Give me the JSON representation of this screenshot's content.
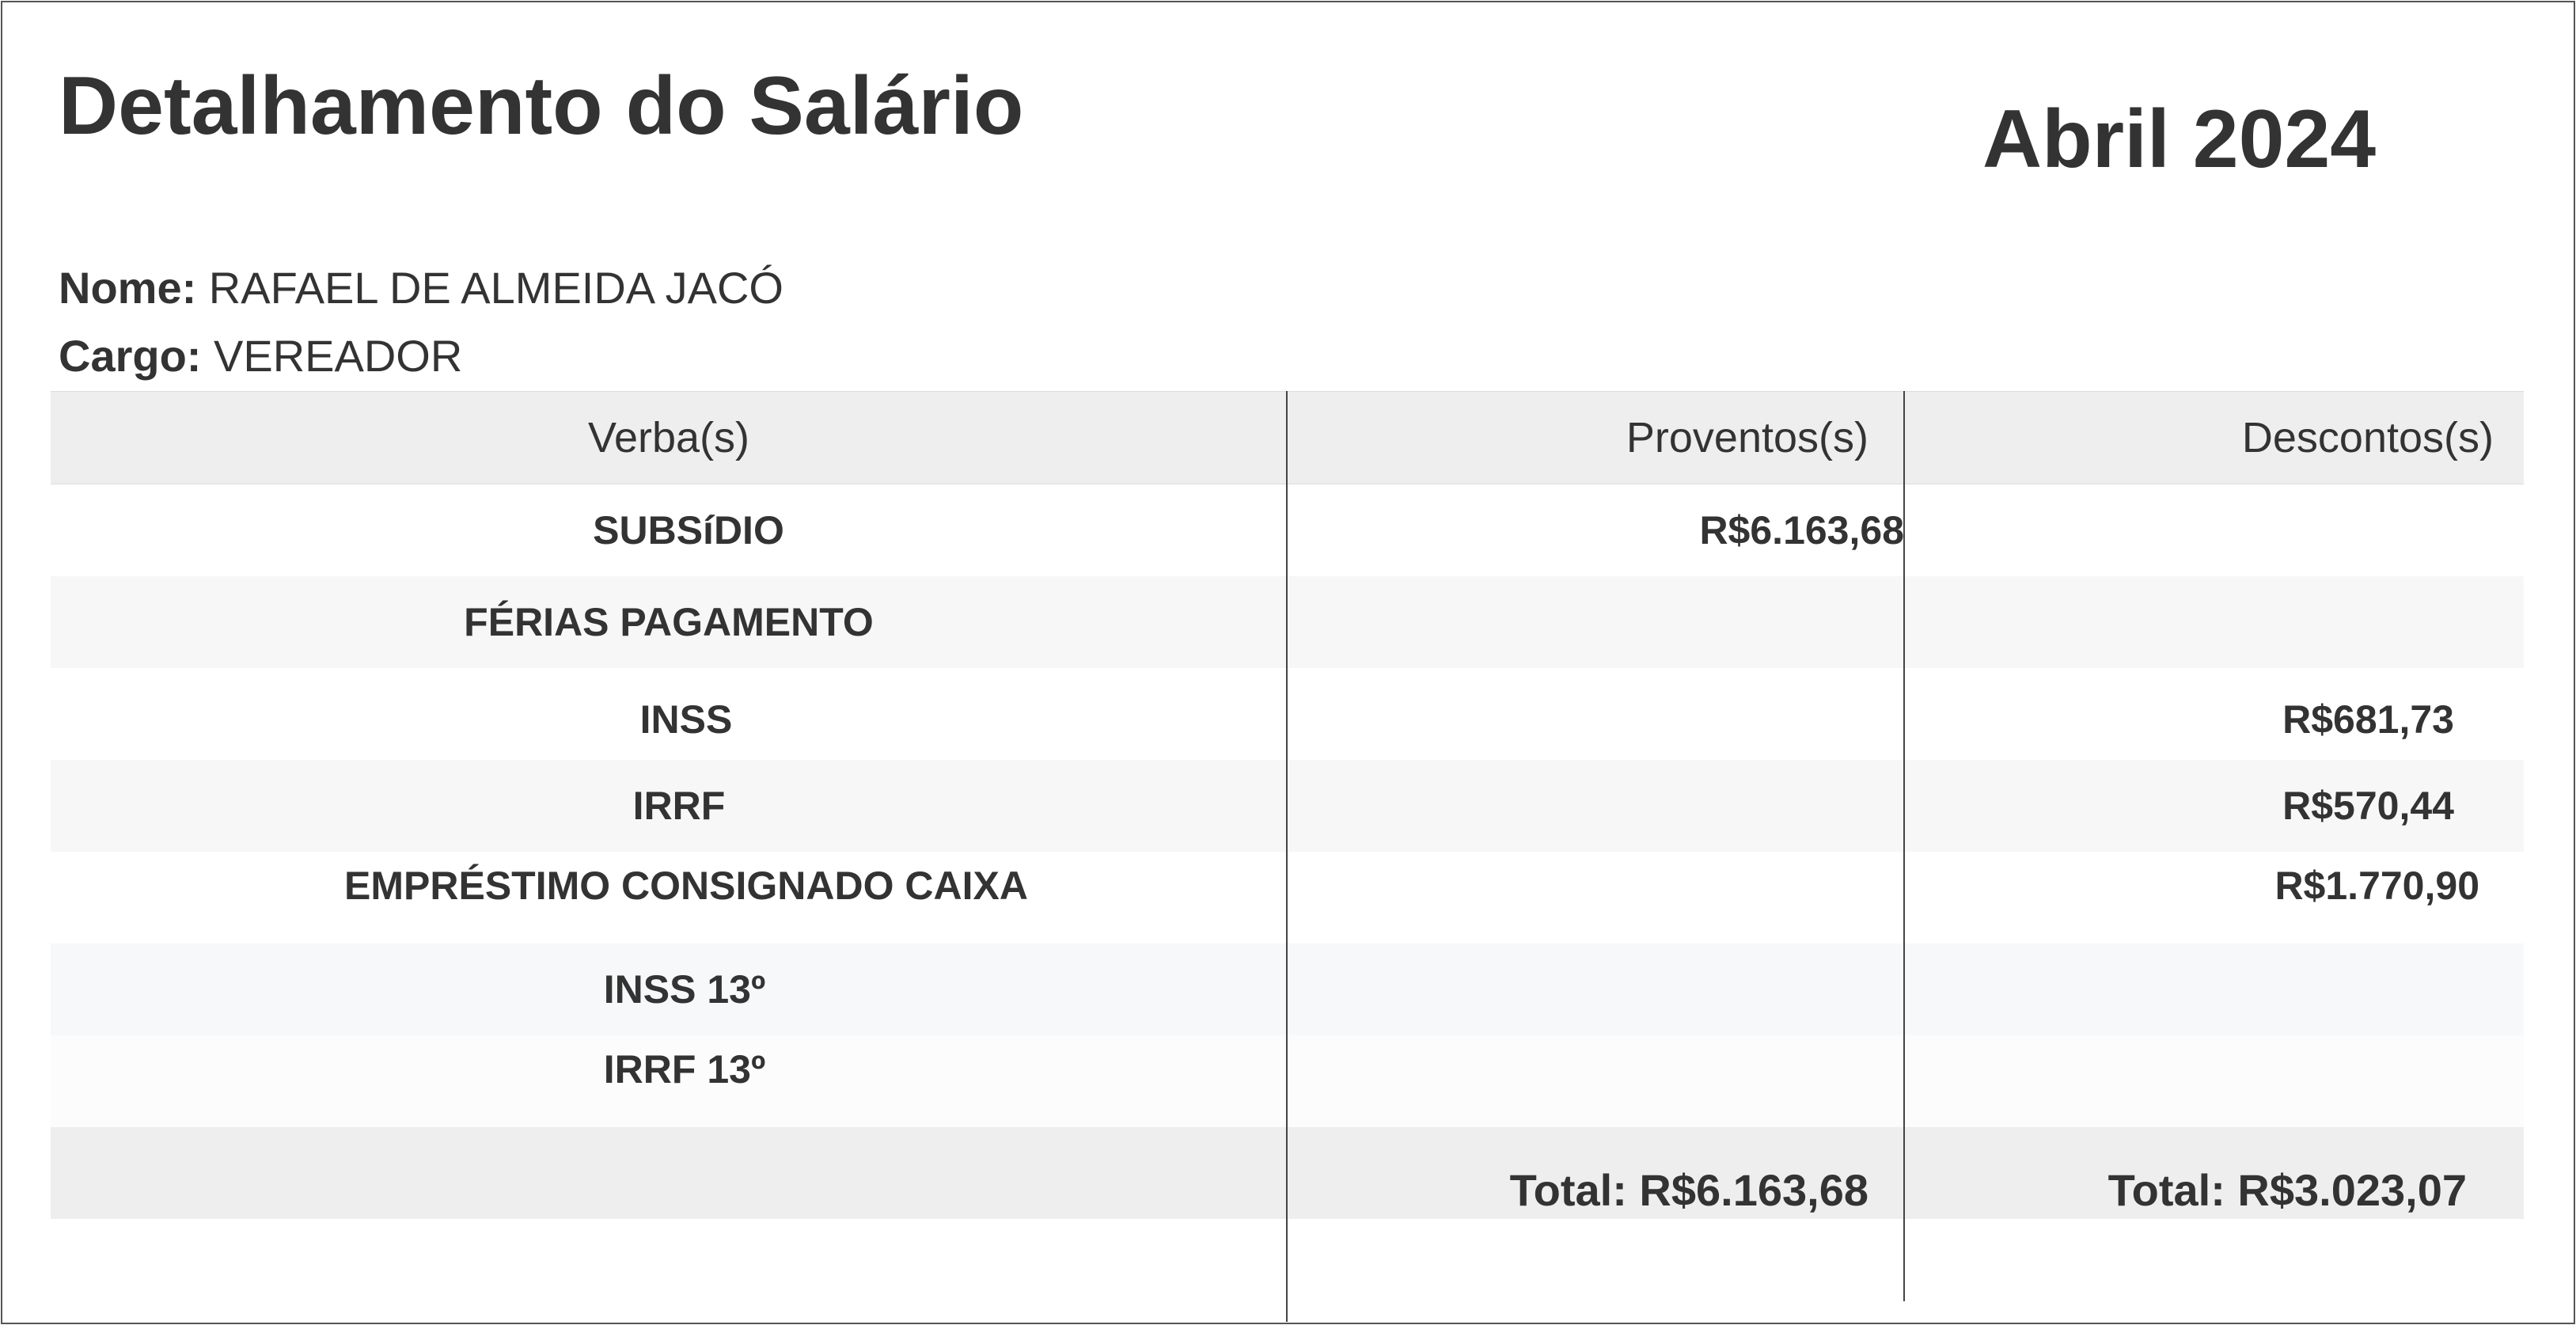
{
  "header": {
    "title": "Detalhamento do Salário",
    "period": "Abril 2024"
  },
  "employee": {
    "name_label": "Nome:",
    "name": "RAFAEL DE ALMEIDA JACÓ",
    "role_label": "Cargo:",
    "role": "VEREADOR"
  },
  "table": {
    "columns": [
      "Verba(s)",
      "Proventos(s)",
      "Descontos(s)"
    ],
    "rows": [
      {
        "verba": "SUBSíDIO",
        "proventos": "R$6.163,68",
        "descontos": ""
      },
      {
        "verba": "FÉRIAS PAGAMENTO",
        "proventos": "",
        "descontos": ""
      },
      {
        "verba": "INSS",
        "proventos": "",
        "descontos": "R$681,73"
      },
      {
        "verba": "IRRF",
        "proventos": "",
        "descontos": "R$570,44"
      },
      {
        "verba": "EMPRÉSTIMO CONSIGNADO CAIXA",
        "proventos": "",
        "descontos": "R$1.770,90"
      },
      {
        "verba": "INSS 13º",
        "proventos": "",
        "descontos": ""
      },
      {
        "verba": "IRRF 13º",
        "proventos": "",
        "descontos": ""
      }
    ],
    "totals": {
      "proventos": "Total: R$6.163,68",
      "descontos": "Total: R$3.023,07"
    }
  },
  "colors": {
    "text": "#333333",
    "header_bg": "#eeeeee",
    "stripe_bg": "#f7f7f7"
  }
}
